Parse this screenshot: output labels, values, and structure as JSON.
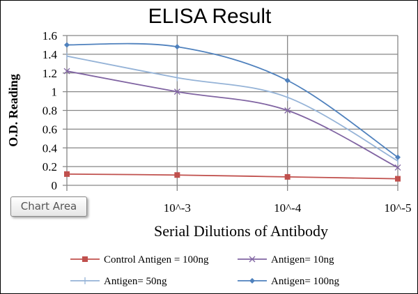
{
  "chart_data": {
    "type": "line",
    "title": "ELISA Result",
    "xlabel": "Serial Dilutions  of Antibody",
    "ylabel": "O.D. Reading",
    "categories": [
      "",
      "10^-3",
      "10^-4",
      "10^-5"
    ],
    "ylim": [
      0,
      1.6
    ],
    "yticks": [
      0,
      0.2,
      0.4,
      0.6,
      0.8,
      1,
      1.2,
      1.4,
      1.6
    ],
    "ytick_labels": [
      "0",
      "0.2",
      "0.4",
      "0.6",
      "0.8",
      "1",
      "1.2",
      "1.4",
      "1.6"
    ],
    "grid": true,
    "smoothed": true,
    "legend_position": "bottom",
    "series": [
      {
        "name": "Control Antigen = 100ng",
        "values": [
          0.12,
          0.11,
          0.09,
          0.07
        ],
        "color": "#c0504d",
        "marker": "square"
      },
      {
        "name": "Antigen= 10ng",
        "values": [
          1.22,
          1.0,
          0.8,
          0.19
        ],
        "color": "#8064a2",
        "marker": "x"
      },
      {
        "name": "Antigen= 50ng",
        "values": [
          1.38,
          1.15,
          0.94,
          0.26
        ],
        "color": "#95b3d7",
        "marker": "plus"
      },
      {
        "name": "Antigen= 100ng",
        "values": [
          1.5,
          1.48,
          1.12,
          0.3
        ],
        "color": "#4f81bd",
        "marker": "diamond"
      }
    ]
  },
  "tooltip": {
    "label": "Chart Area"
  }
}
